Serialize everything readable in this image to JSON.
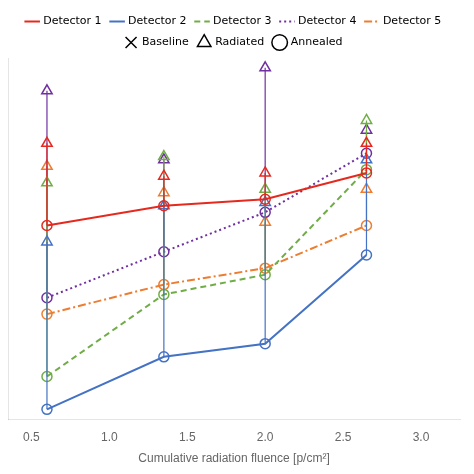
{
  "chart_data": {
    "type": "line",
    "xlabel": "Cumulative radiation fluence [p/cm²]",
    "x": [
      0.6,
      1.35,
      2.0,
      2.65
    ],
    "series": [
      {
        "name": "Detector 1",
        "color": "#e6291e",
        "line_style": "solid",
        "radiated": [
          0.82,
          0.72,
          0.73,
          0.82
        ],
        "annealed": [
          0.57,
          0.63,
          0.65,
          0.73
        ]
      },
      {
        "name": "Detector 2",
        "color": "#4472c4",
        "line_style": "solid",
        "radiated": [
          0.52,
          0.63,
          0.64,
          0.77
        ],
        "annealed": [
          0.01,
          0.17,
          0.21,
          0.48
        ]
      },
      {
        "name": "Detector 3",
        "color": "#70ad47",
        "line_style": "dashed",
        "radiated": [
          0.7,
          0.78,
          0.68,
          0.89
        ],
        "annealed": [
          0.11,
          0.36,
          0.42,
          0.74
        ]
      },
      {
        "name": "Detector 4",
        "color": "#7030a0",
        "line_style": "dotted",
        "radiated": [
          0.98,
          0.77,
          1.05,
          0.86
        ],
        "annealed": [
          0.35,
          0.49,
          0.61,
          0.79
        ]
      },
      {
        "name": "Detector 5",
        "color": "#ed7d31",
        "line_style": "dashdot",
        "radiated": [
          0.75,
          0.67,
          0.58,
          0.68
        ],
        "annealed": [
          0.3,
          0.39,
          0.44,
          0.57
        ]
      }
    ],
    "markers": [
      {
        "name": "Baseline",
        "marker": "x"
      },
      {
        "name": "Radiated",
        "marker": "triangle"
      },
      {
        "name": "Annealed",
        "marker": "circle"
      }
    ],
    "xlim": [
      0.35,
      3.25
    ],
    "xticks": [
      0.5,
      {
        "value": 1.0,
        "label": "1.0"
      },
      1.5,
      {
        "value": 2.0,
        "label": "2.0"
      },
      2.5,
      {
        "value": 3.0,
        "label": "3.0"
      }
    ],
    "ylim": [
      -0.02,
      1.08
    ],
    "tick_labels": "x",
    "grid": false,
    "legend": "top"
  }
}
